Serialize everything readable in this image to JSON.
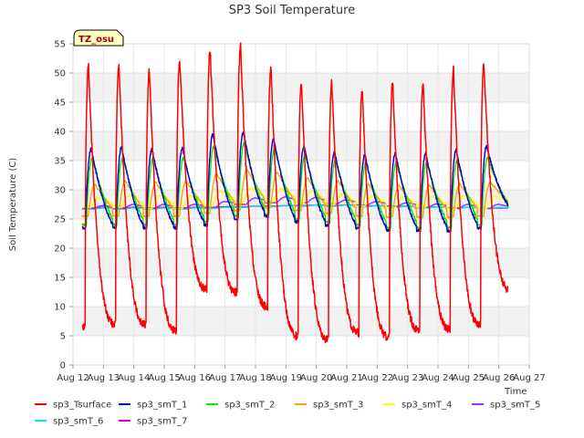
{
  "chart_data": {
    "type": "line",
    "title": "SP3 Soil Temperature",
    "ylabel": "Soil Temperature (C)",
    "xlabel": "Time",
    "ylim": [
      0,
      55
    ],
    "yticks": [
      0,
      5,
      10,
      15,
      20,
      25,
      30,
      35,
      40,
      45,
      50,
      55
    ],
    "xlim": [
      12,
      27
    ],
    "xticks": [
      {
        "value": 12,
        "label": "Aug 12"
      },
      {
        "value": 13,
        "label": "Aug 13"
      },
      {
        "value": 14,
        "label": "Aug 14"
      },
      {
        "value": 15,
        "label": "Aug 15"
      },
      {
        "value": 16,
        "label": "Aug 16"
      },
      {
        "value": 17,
        "label": "Aug 17"
      },
      {
        "value": 18,
        "label": "Aug 18"
      },
      {
        "value": 19,
        "label": "Aug 19"
      },
      {
        "value": 20,
        "label": "Aug 20"
      },
      {
        "value": 21,
        "label": "Aug 21"
      },
      {
        "value": 22,
        "label": "Aug 22"
      },
      {
        "value": 23,
        "label": "Aug 23"
      },
      {
        "value": 24,
        "label": "Aug 24"
      },
      {
        "value": 25,
        "label": "Aug 25"
      },
      {
        "value": 26,
        "label": "Aug 26"
      },
      {
        "value": 27,
        "label": "Aug 27"
      }
    ],
    "annotation": "TZ_osu",
    "days": [
      12.3,
      13.3,
      14.3,
      15.3,
      16.3,
      17.3,
      18.3,
      19.3,
      20.3,
      21.3,
      22.3,
      23.3,
      24.3,
      25.3
    ],
    "series": [
      {
        "name": "sp3_Tsurface",
        "color": "#ff0000",
        "peaks": [
          51,
          51.5,
          50.5,
          52.5,
          54,
          54.5,
          51,
          48.5,
          48.5,
          47,
          48.5,
          48.5,
          50.5,
          51.5
        ],
        "troughs": [
          6.5,
          7,
          7,
          6,
          13,
          12.5,
          10,
          5,
          4.5,
          5.5,
          4.8,
          6,
          6.2,
          7,
          12.8
        ]
      },
      {
        "name": "sp3_smT_1",
        "color": "#0000cc",
        "peaks": [
          37,
          37.3,
          37,
          37.2,
          39.5,
          40,
          38.7,
          37.5,
          36.5,
          36,
          36.3,
          36.3,
          36.8,
          37.4
        ],
        "troughs": [
          23.5,
          23.5,
          23.5,
          23.5,
          24,
          25,
          25.5,
          24.5,
          24,
          23.5,
          23,
          23,
          23,
          23.5,
          27
        ]
      },
      {
        "name": "sp3_smT_2",
        "color": "#00ee00",
        "peaks": [
          35.5,
          35.5,
          35.3,
          35.5,
          37.5,
          38,
          37,
          36,
          35,
          34.5,
          34.7,
          34.8,
          35,
          35.5
        ],
        "troughs": [
          24,
          24,
          24,
          24,
          24.5,
          25.5,
          25.8,
          25,
          24.5,
          24,
          23.5,
          23.5,
          23.5,
          24,
          27
        ]
      },
      {
        "name": "sp3_smT_3",
        "color": "#ffa500",
        "peaks": [
          31,
          31.5,
          31.3,
          31.5,
          32.8,
          33.5,
          33,
          32,
          31.5,
          31,
          30.8,
          30.8,
          31,
          31.3
        ],
        "troughs": [
          25.5,
          25.5,
          25.5,
          25.5,
          26,
          26.5,
          27,
          26.5,
          26,
          25.5,
          25.3,
          25.3,
          25.3,
          25.5,
          27
        ]
      },
      {
        "name": "sp3_smT_4",
        "color": "#ffff00",
        "peaks": [
          28.7,
          29,
          29,
          29,
          29.8,
          30.3,
          30.2,
          29.8,
          29.3,
          29,
          28.8,
          28.8,
          29,
          29
        ],
        "troughs": [
          27,
          27,
          26.8,
          26.8,
          27.2,
          27.8,
          28,
          27.8,
          27.5,
          27.2,
          27,
          27,
          26.8,
          26.8,
          27.5
        ]
      },
      {
        "name": "sp3_smT_5",
        "color": "#9933ff",
        "peaks": [
          27.3,
          27.5,
          27.5,
          27.5,
          28,
          28.6,
          28.8,
          28.7,
          28.3,
          28,
          27.8,
          27.6,
          27.5,
          27.5
        ],
        "troughs": [
          26.8,
          26.8,
          26.8,
          26.8,
          27,
          27.5,
          27.8,
          27.8,
          27.6,
          27.4,
          27.2,
          27,
          26.8,
          26.8,
          26.8
        ]
      },
      {
        "name": "sp3_smT_6",
        "color": "#00e5ee",
        "peaks": [
          26.9,
          26.9,
          26.9,
          26.9,
          27,
          27.2,
          27.3,
          27.4,
          27.4,
          27.3,
          27.2,
          27.1,
          27,
          27
        ],
        "troughs": [
          26.7,
          26.7,
          26.7,
          26.7,
          26.8,
          27,
          27.1,
          27.2,
          27.2,
          27.1,
          27,
          26.9,
          26.8,
          26.8,
          26.8
        ]
      },
      {
        "name": "sp3_smT_7",
        "color": "#cc00cc",
        "peaks": [
          27,
          27,
          27,
          27,
          27.1,
          27.2,
          27.3,
          27.4,
          27.4,
          27.3,
          27.2,
          27.1,
          27,
          26.9
        ],
        "troughs": [
          26.9,
          26.9,
          26.9,
          26.9,
          27,
          27.1,
          27.2,
          27.3,
          27.3,
          27.2,
          27.1,
          27,
          26.9,
          26.8,
          26.8
        ]
      }
    ]
  }
}
